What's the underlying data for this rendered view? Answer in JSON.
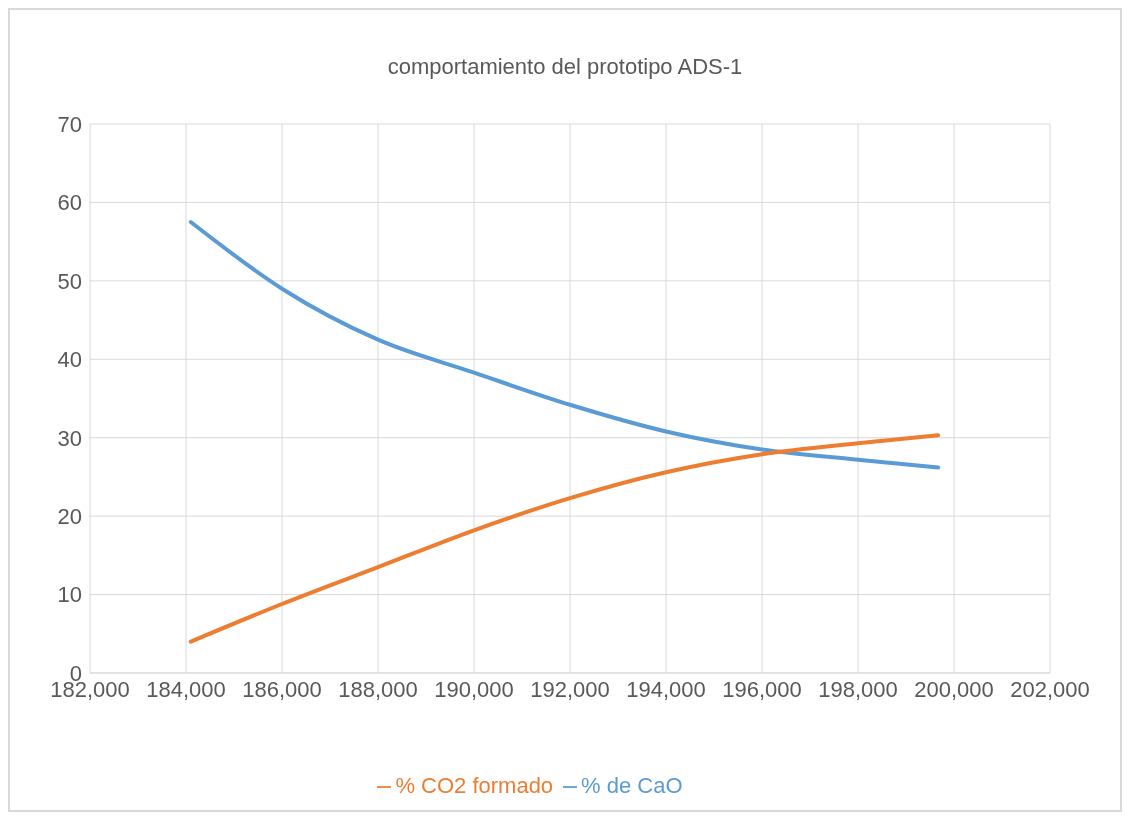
{
  "chart_data": {
    "type": "line",
    "title": "comportamiento del prototipo ADS-1",
    "x": [
      184100,
      186000,
      188000,
      190000,
      192000,
      194000,
      196000,
      198000,
      199670
    ],
    "series": [
      {
        "name": "% de CaO",
        "color": "#5b9bd5",
        "values": [
          57.5,
          49,
          42.5,
          38.3,
          34.2,
          30.8,
          28.5,
          27.2,
          26.2
        ]
      },
      {
        "name": "% CO2 formado",
        "color": "#ed7d31",
        "values": [
          4,
          8.8,
          13.5,
          18.2,
          22.3,
          25.6,
          27.9,
          29.3,
          30.3
        ]
      }
    ],
    "xlim": [
      182000,
      202000
    ],
    "xticks": [
      {
        "value": 182000,
        "label": "182,000"
      },
      {
        "value": 184000,
        "label": "184,000"
      },
      {
        "value": 186000,
        "label": "186,000"
      },
      {
        "value": 188000,
        "label": "188,000"
      },
      {
        "value": 190000,
        "label": "190,000"
      },
      {
        "value": 192000,
        "label": "192,000"
      },
      {
        "value": 194000,
        "label": "194,000"
      },
      {
        "value": 196000,
        "label": "196,000"
      },
      {
        "value": 198000,
        "label": "198,000"
      },
      {
        "value": 200000,
        "label": "200,000"
      },
      {
        "value": 202000,
        "label": "202,000"
      }
    ],
    "ylim": [
      0,
      70
    ],
    "yticks": [
      0,
      10,
      20,
      30,
      40,
      50,
      60,
      70
    ],
    "grid": true,
    "legend": "bottom",
    "marker": "none",
    "line_style": "solid"
  }
}
